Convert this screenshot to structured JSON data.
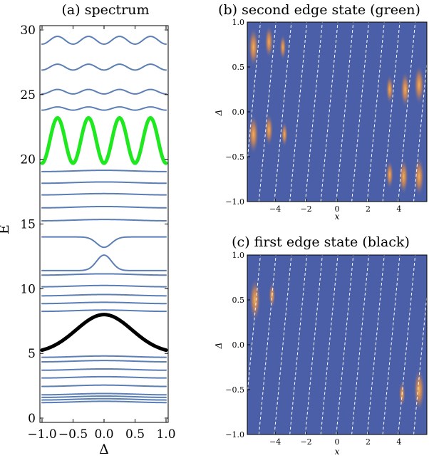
{
  "panels": {
    "a": {
      "title": "(a) spectrum"
    },
    "b": {
      "title": "(b) second edge state (green)"
    },
    "c": {
      "title": "(c) first edge state (black)"
    }
  },
  "chart_data": [
    {
      "type": "line",
      "title": "(a) spectrum",
      "xlabel": "Δ",
      "ylabel": "E",
      "xlim": [
        -1.0,
        1.0
      ],
      "ylim": [
        0,
        30
      ],
      "xticks": [
        "−1.0",
        "−0.5",
        "0.0",
        "0.5",
        "1.0"
      ],
      "yticks": [
        "0",
        "5",
        "10",
        "15",
        "20",
        "25",
        "30"
      ],
      "colors": {
        "bands": "#5b7fb5",
        "green": "#1ee81e",
        "black": "#000000"
      },
      "bands": [
        {
          "kind": "flat",
          "e": 1.25
        },
        {
          "kind": "flat",
          "e": 1.45
        },
        {
          "kind": "flat",
          "e": 1.65
        },
        {
          "kind": "flat",
          "e": 1.85
        },
        {
          "kind": "flat",
          "e": 2.5
        },
        {
          "kind": "flat",
          "e": 3.15
        },
        {
          "kind": "flat",
          "e": 3.75
        },
        {
          "kind": "flat",
          "e": 4.4
        },
        {
          "kind": "flat",
          "e": 4.75
        },
        {
          "kind": "peak",
          "name": "first edge state",
          "color": "black",
          "base": 5.0,
          "amp": 3.0,
          "width": 0.45,
          "thick": true
        },
        {
          "kind": "flat",
          "e": 8.3
        },
        {
          "kind": "flat",
          "e": 8.9
        },
        {
          "kind": "flat",
          "e": 9.5
        },
        {
          "kind": "flat",
          "e": 10.2
        },
        {
          "kind": "flat",
          "e": 11.1
        },
        {
          "kind": "peak",
          "base": 11.4,
          "amp": 1.2,
          "width": 0.12
        },
        {
          "kind": "dip",
          "base": 14.0,
          "amp": 0.8,
          "width": 0.12
        },
        {
          "kind": "flat",
          "e": 15.3
        },
        {
          "kind": "flat",
          "e": 16.3
        },
        {
          "kind": "flat",
          "e": 17.3
        },
        {
          "kind": "flat",
          "e": 18.2
        },
        {
          "kind": "flat",
          "e": 19.1
        },
        {
          "kind": "cos",
          "name": "second edge state",
          "color": "green",
          "base": 19.7,
          "amp": 3.5,
          "thick": true
        },
        {
          "kind": "cos",
          "base": 23.8,
          "amp": 0.25
        },
        {
          "kind": "cos",
          "base": 25.05,
          "amp": 0.35
        },
        {
          "kind": "cos",
          "base": 26.9,
          "amp": 0.45
        },
        {
          "kind": "cos",
          "base": 28.9,
          "amp": 0.6
        }
      ]
    },
    {
      "type": "heatmap",
      "title": "(b) second edge state (green)",
      "xlabel": "x",
      "ylabel": "Δ",
      "xlim": [
        -5.8,
        5.8
      ],
      "ylim": [
        -1.0,
        1.0
      ],
      "xticks": [
        "−4",
        "−2",
        "0",
        "2",
        "4"
      ],
      "yticks": [
        "−1.0",
        "−0.5",
        "0.0",
        "0.5",
        "1.0"
      ],
      "colors": {
        "background": "#4a5fa8",
        "hot": "#f5a040",
        "guides": "#ffffff"
      },
      "blobs": [
        {
          "x": -5.4,
          "d": 0.72,
          "r": 0.55
        },
        {
          "x": -4.4,
          "d": 0.78,
          "r": 0.45
        },
        {
          "x": -3.5,
          "d": 0.72,
          "r": 0.35
        },
        {
          "x": -5.4,
          "d": -0.25,
          "r": 0.55
        },
        {
          "x": -4.4,
          "d": -0.2,
          "r": 0.45
        },
        {
          "x": -3.4,
          "d": -0.25,
          "r": 0.35
        },
        {
          "x": 3.4,
          "d": 0.25,
          "r": 0.4
        },
        {
          "x": 4.4,
          "d": 0.25,
          "r": 0.5
        },
        {
          "x": 5.3,
          "d": 0.3,
          "r": 0.55
        },
        {
          "x": 3.4,
          "d": -0.7,
          "r": 0.4
        },
        {
          "x": 4.3,
          "d": -0.72,
          "r": 0.5
        },
        {
          "x": 5.3,
          "d": -0.72,
          "r": 0.55
        }
      ]
    },
    {
      "type": "heatmap",
      "title": "(c) first edge state (black)",
      "xlabel": "x",
      "ylabel": "Δ",
      "xlim": [
        -5.8,
        5.8
      ],
      "ylim": [
        -1.0,
        1.0
      ],
      "xticks": [
        "−4",
        "−2",
        "0",
        "2",
        "4"
      ],
      "yticks": [
        "−1.0",
        "−0.5",
        "0.0",
        "0.5",
        "1.0"
      ],
      "colors": {
        "background": "#4a5fa8",
        "hot": "#f5a040",
        "guides": "#ffffff"
      },
      "blobs": [
        {
          "x": -5.3,
          "d": 0.5,
          "r": 0.6
        },
        {
          "x": -4.2,
          "d": 0.55,
          "r": 0.35
        },
        {
          "x": 5.3,
          "d": -0.5,
          "r": 0.6
        },
        {
          "x": 4.2,
          "d": -0.55,
          "r": 0.35
        }
      ]
    }
  ]
}
